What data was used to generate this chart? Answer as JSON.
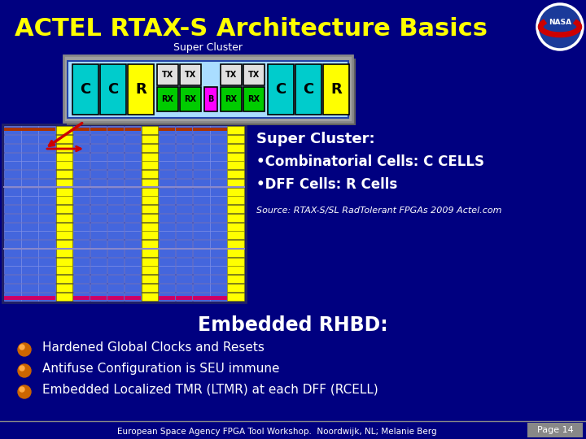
{
  "title": "ACTEL RTAX-S Architecture Basics",
  "bg_color": "#000080",
  "title_color": "#FFFF00",
  "title_fontsize": 22,
  "super_cluster_label": "Super Cluster",
  "bullet_header": "Super Cluster:",
  "bullets": [
    "•Combinatorial Cells: C CELLS",
    "•DFF Cells: R Cells"
  ],
  "source_text": "Source: RTAX-S/SL RadTolerant FPGAs 2009 Actel.com",
  "embedded_header": "Embedded RHBD:",
  "embedded_bullets": [
    "Hardened Global Clocks and Resets",
    "Antifuse Configuration is SEU immune",
    "Embedded Localized TMR (LTMR) at each DFF (RCELL)"
  ],
  "footer": "European Space Agency FPGA Tool Workshop.  Noordwijk, NL; Melanie Berg",
  "page_label": "Page 14",
  "sc_outer_bg": "#a0a0a0",
  "sc_inner_bg": "#aaddff",
  "cell_cyan": "#00CCCC",
  "cell_yellow": "#FFFF00",
  "cell_tx_bg": "#e0e0e0",
  "cell_rx_bg": "#00CC00",
  "cell_b_bg": "#FF00FF",
  "grid_bg": "#0000AA",
  "grid_cell": "#4466DD",
  "grid_col_yellow": "#FFFF00",
  "nasa_bg": "#1133AA",
  "bullet_icon_color": "#CC6600",
  "footer_page_bg": "#888888"
}
